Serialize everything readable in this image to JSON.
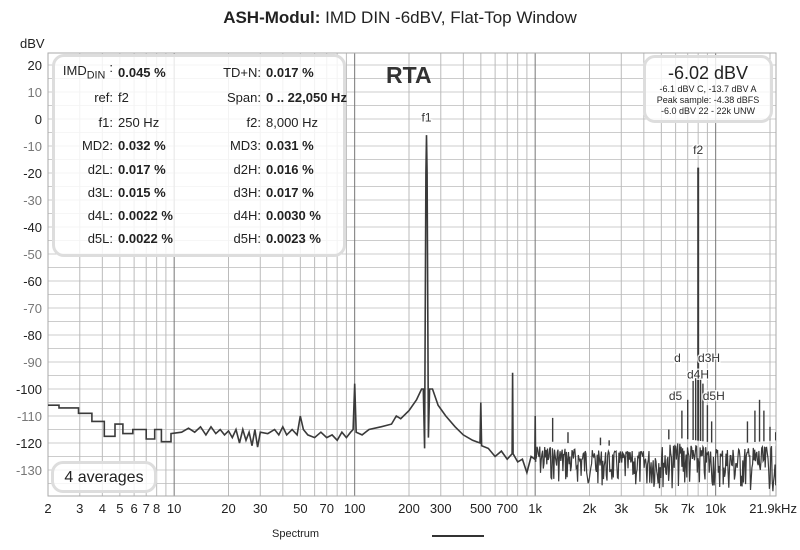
{
  "title": {
    "bold": "ASH-Modul:",
    "rest": " IMD DIN -6dBV, Flat-Top Window"
  },
  "y_unit": "dBV",
  "rta_label": "RTA",
  "info": {
    "left": [
      {
        "label": "IMD",
        "sub": "DIN",
        "sep": ":",
        "value": "0.045 %",
        "bold": true
      },
      {
        "label": "ref:",
        "value": "f2",
        "bold": false
      },
      {
        "label": "f1:",
        "value": "250 Hz",
        "bold": false
      },
      {
        "label": "MD2:",
        "value": "0.032 %",
        "bold": true
      },
      {
        "label": "d2L:",
        "value": "0.017 %",
        "bold": true
      },
      {
        "label": "d3L:",
        "value": "0.015 %",
        "bold": true
      },
      {
        "label": "d4L:",
        "value": "0.0022 %",
        "bold": true
      },
      {
        "label": "d5L:",
        "value": "0.0022 %",
        "bold": true
      }
    ],
    "right": [
      {
        "label": "TD+N:",
        "value": "0.017 %",
        "bold": true
      },
      {
        "label": "Span:",
        "value": "0 .. 22,050 Hz",
        "bold": true
      },
      {
        "label": "f2:",
        "value": "8,000 Hz",
        "bold": false
      },
      {
        "label": "MD3:",
        "value": "0.031 %",
        "bold": true
      },
      {
        "label": "d2H:",
        "value": "0.016 %",
        "bold": true
      },
      {
        "label": "d3H:",
        "value": "0.017 %",
        "bold": true
      },
      {
        "label": "d4H:",
        "value": "0.0030 %",
        "bold": true
      },
      {
        "label": "d5H:",
        "value": "0.0023 %",
        "bold": true
      }
    ]
  },
  "level": {
    "main": "-6.02 dBV",
    "lines": [
      "-6.1 dBV C, -13.7 dBV A",
      "Peak sample: -4.38 dBFS",
      "-6.0 dBV 22 - 22k UNW"
    ]
  },
  "averages": "4 averages",
  "chart_data": {
    "type": "line",
    "title": "ASH-Modul: IMD DIN -6dBV, Flat-Top Window",
    "xlabel": "Hz",
    "ylabel": "dBV",
    "xscale": "log",
    "xlim": [
      2,
      21900
    ],
    "ylim": [
      -140,
      24
    ],
    "grid": true,
    "legend": {
      "placement": "bottom-center",
      "entries": [
        "Spectrum"
      ]
    },
    "y_ticks": [
      20,
      10,
      0,
      -10,
      -20,
      -30,
      -40,
      -50,
      -60,
      -70,
      -80,
      -90,
      -100,
      -110,
      -120,
      -130
    ],
    "x_ticks": [
      {
        "v": 2,
        "t": "2"
      },
      {
        "v": 3,
        "t": "3"
      },
      {
        "v": 4,
        "t": "4"
      },
      {
        "v": 5,
        "t": "5"
      },
      {
        "v": 6,
        "t": "6"
      },
      {
        "v": 7,
        "t": "7"
      },
      {
        "v": 8,
        "t": "8"
      },
      {
        "v": 10,
        "t": "10"
      },
      {
        "v": 20,
        "t": "20"
      },
      {
        "v": 30,
        "t": "30"
      },
      {
        "v": 50,
        "t": "50"
      },
      {
        "v": 70,
        "t": "70"
      },
      {
        "v": 100,
        "t": "100"
      },
      {
        "v": 200,
        "t": "200"
      },
      {
        "v": 300,
        "t": "300"
      },
      {
        "v": 500,
        "t": "500"
      },
      {
        "v": 700,
        "t": "700"
      },
      {
        "v": 1000,
        "t": "1k"
      },
      {
        "v": 2000,
        "t": "2k"
      },
      {
        "v": 3000,
        "t": "3k"
      },
      {
        "v": 5000,
        "t": "5k"
      },
      {
        "v": 7000,
        "t": "7k"
      },
      {
        "v": 10000,
        "t": "10k"
      },
      {
        "v": 21900,
        "t": "21.9kHz"
      }
    ],
    "series": [
      {
        "name": "Spectrum",
        "color": "#3a3a3a",
        "points": [
          [
            2,
            -106
          ],
          [
            2.3,
            -106
          ],
          [
            2.3,
            -107
          ],
          [
            2.95,
            -107
          ],
          [
            2.95,
            -109
          ],
          [
            3.5,
            -109
          ],
          [
            3.5,
            -112
          ],
          [
            4.1,
            -112
          ],
          [
            4.1,
            -117.5
          ],
          [
            4.7,
            -117.5
          ],
          [
            4.7,
            -113
          ],
          [
            5.2,
            -113
          ],
          [
            5.2,
            -116.5
          ],
          [
            5.9,
            -116.5
          ],
          [
            5.9,
            -115
          ],
          [
            7,
            -115
          ],
          [
            7,
            -118.5
          ],
          [
            7.8,
            -118.5
          ],
          [
            7.8,
            -115
          ],
          [
            8.5,
            -115
          ],
          [
            8.5,
            -119.5
          ],
          [
            9.6,
            -119.5
          ],
          [
            9.6,
            -116.5
          ],
          [
            11,
            -116
          ],
          [
            12,
            -114.5
          ],
          [
            13,
            -116
          ],
          [
            14,
            -114
          ],
          [
            15,
            -117
          ],
          [
            16,
            -114
          ],
          [
            17,
            -116.5
          ],
          [
            18,
            -115
          ],
          [
            19,
            -117
          ],
          [
            20,
            -115.5
          ],
          [
            21,
            -118
          ],
          [
            22,
            -115
          ],
          [
            23,
            -120
          ],
          [
            24,
            -115
          ],
          [
            25,
            -119
          ],
          [
            26,
            -116
          ],
          [
            27,
            -121
          ],
          [
            28,
            -115
          ],
          [
            29,
            -121.5
          ],
          [
            30,
            -116
          ],
          [
            33,
            -116.5
          ],
          [
            36,
            -115
          ],
          [
            38,
            -117
          ],
          [
            40,
            -114
          ],
          [
            42,
            -117
          ],
          [
            45,
            -115
          ],
          [
            48,
            -117
          ],
          [
            50,
            -110
          ],
          [
            52,
            -115
          ],
          [
            55,
            -117
          ],
          [
            60,
            -118
          ],
          [
            65,
            -116
          ],
          [
            70,
            -118
          ],
          [
            75,
            -117
          ],
          [
            80,
            -119
          ],
          [
            85,
            -116
          ],
          [
            90,
            -118
          ],
          [
            95,
            -116
          ],
          [
            98,
            -115
          ],
          [
            100,
            -98
          ],
          [
            102,
            -116
          ],
          [
            110,
            -117
          ],
          [
            120,
            -115
          ],
          [
            140,
            -114
          ],
          [
            160,
            -113
          ],
          [
            170,
            -110
          ],
          [
            180,
            -111
          ],
          [
            200,
            -108
          ],
          [
            220,
            -104
          ],
          [
            235,
            -100
          ],
          [
            240,
            -100
          ],
          [
            244,
            -122
          ],
          [
            248,
            -20
          ],
          [
            250,
            -6
          ],
          [
            252,
            -20
          ],
          [
            256,
            -118
          ],
          [
            260,
            -100
          ],
          [
            270,
            -100
          ],
          [
            290,
            -106
          ],
          [
            320,
            -110
          ],
          [
            360,
            -114
          ],
          [
            400,
            -117
          ],
          [
            450,
            -119
          ],
          [
            495,
            -120
          ],
          [
            500,
            -105
          ],
          [
            505,
            -121
          ],
          [
            550,
            -122
          ],
          [
            600,
            -125
          ],
          [
            650,
            -123
          ],
          [
            700,
            -126
          ],
          [
            745,
            -124
          ],
          [
            750,
            -94
          ],
          [
            755,
            -124
          ],
          [
            800,
            -127
          ],
          [
            850,
            -126
          ],
          [
            900,
            -131
          ],
          [
            950,
            -125
          ],
          [
            995,
            -126
          ],
          [
            1000,
            -110
          ],
          [
            1005,
            -127
          ]
        ],
        "noise_band": [
          [
            1005,
            -121,
            -133
          ],
          [
            1500,
            -122,
            -135
          ],
          [
            2500,
            -123,
            -136
          ],
          [
            4000,
            -123,
            -137
          ],
          [
            6000,
            -120,
            -137
          ],
          [
            10000,
            -122,
            -137
          ],
          [
            14000,
            -122,
            -138
          ],
          [
            21900,
            -121,
            -138
          ]
        ],
        "peaks": [
          [
            1250,
            -110.7
          ],
          [
            1520,
            -116
          ],
          [
            2300,
            -118
          ],
          [
            2570,
            -119
          ],
          [
            5500,
            -115
          ],
          [
            6500,
            -108
          ],
          [
            7000,
            -104
          ],
          [
            7500,
            -97
          ],
          [
            7750,
            -96
          ],
          [
            8000,
            -18
          ],
          [
            8250,
            -96
          ],
          [
            8500,
            -98
          ],
          [
            9000,
            -106
          ],
          [
            9500,
            -112
          ],
          [
            15000,
            -112
          ],
          [
            16500,
            -108
          ],
          [
            17500,
            -104
          ],
          [
            18500,
            -108
          ],
          [
            20000,
            -114
          ],
          [
            21500,
            -116
          ]
        ]
      }
    ],
    "annotations": [
      {
        "text": "f1",
        "freq": 250,
        "db": -1
      },
      {
        "text": "f2",
        "freq": 8000,
        "db": -13
      },
      {
        "text": "d",
        "freq": 7350,
        "db": -90
      },
      {
        "text": "d3H",
        "freq": 8300,
        "db": -90
      },
      {
        "text": "d4H",
        "freq": 8400,
        "db": -102
      },
      {
        "text": "d5",
        "freq": 7350,
        "db": -104
      },
      {
        "text": "d5H",
        "freq": 8700,
        "db": -104
      }
    ]
  }
}
